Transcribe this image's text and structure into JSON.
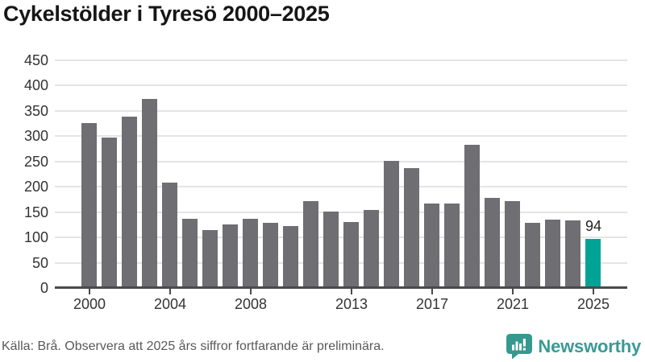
{
  "title": "Cykelstölder i Tyresö 2000–2025",
  "footer": {
    "source": "Källa: Brå. Observera att 2025 års siffror fortfarande är preliminära.",
    "brand": "Newsworthy"
  },
  "colors": {
    "bar": "#6e6e73",
    "highlight": "#00a396",
    "brand": "#3a9a96",
    "grid": "#e4e4e5",
    "axis": "#4a4a4c",
    "tick_text": "#333333",
    "title_text": "#161616",
    "footer_text": "#595959",
    "value_label_text": "#222222"
  },
  "chart_data": {
    "type": "bar",
    "title": "Cykelstölder i Tyresö 2000–2025",
    "categories": [
      2000,
      2001,
      2002,
      2003,
      2004,
      2005,
      2006,
      2007,
      2008,
      2009,
      2010,
      2011,
      2012,
      2013,
      2014,
      2015,
      2016,
      2017,
      2018,
      2019,
      2020,
      2021,
      2022,
      2023,
      2024,
      2025
    ],
    "values": [
      322,
      294,
      336,
      370,
      205,
      134,
      112,
      123,
      134,
      126,
      119,
      168,
      148,
      128,
      151,
      248,
      234,
      164,
      164,
      280,
      175,
      169,
      125,
      132,
      131,
      94
    ],
    "xlabel": "",
    "ylabel": "",
    "ylim": [
      0,
      450
    ],
    "y_ticks": [
      0,
      50,
      100,
      150,
      200,
      250,
      300,
      350,
      400,
      450
    ],
    "x_tick_years": [
      2000,
      2004,
      2008,
      2013,
      2017,
      2021,
      2025
    ],
    "grid": true,
    "legend": false,
    "highlight": {
      "year": 2025,
      "label": "94"
    }
  }
}
